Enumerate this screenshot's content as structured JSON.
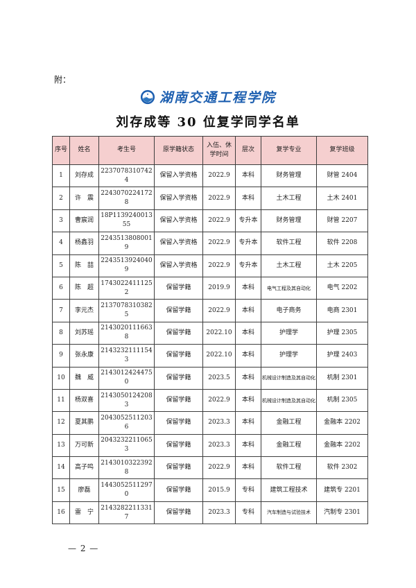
{
  "page": {
    "attachment_label": "附：",
    "page_number": "— 2 —"
  },
  "header": {
    "school_name": "湖南交通工程学院",
    "emblem_icon": "school-seal-icon",
    "title": "刘存成等 30 位复学同学名单"
  },
  "colors": {
    "header_bg": "#f5cfcf",
    "logo_blue": "#1d5fb0",
    "border": "#3c3c3c",
    "page_bg": "#ffffff"
  },
  "table": {
    "columns": [
      "序号",
      "姓名",
      "考生号",
      "原学籍状态",
      "入伍、休学时间",
      "层次",
      "复学专业",
      "复学班级"
    ],
    "rows": [
      [
        "1",
        "刘存成",
        "22370783107424",
        "保留入学资格",
        "2022.9",
        "本科",
        "财务管理",
        "财管 2404"
      ],
      [
        "2",
        "许　震",
        "22430702241728",
        "保留入学资格",
        "2022.9",
        "本科",
        "土木工程",
        "土木 2401"
      ],
      [
        "3",
        "曹宸润",
        "18P113924001355",
        "保留入学资格",
        "2022.9",
        "专升本",
        "财务管理",
        "财管 2207"
      ],
      [
        "4",
        "杨鑫羽",
        "22435138080019",
        "保留入学资格",
        "2022.9",
        "专升本",
        "软件工程",
        "软件 2208"
      ],
      [
        "5",
        "陈　喆",
        "22435139240409",
        "保留入学资格",
        "2022.9",
        "专升本",
        "土木工程",
        "土木 2205"
      ],
      [
        "6",
        "陈　超",
        "17430224111252",
        "保留学籍",
        "2019.9",
        "本科",
        "电气工程及其自动化",
        "电气 2202"
      ],
      [
        "7",
        "李元杰",
        "21370783103825",
        "保留学籍",
        "2022.9",
        "本科",
        "电子商务",
        "电商 2301"
      ],
      [
        "8",
        "刘苏瑶",
        "21430201116638",
        "保留学籍",
        "2022.10",
        "本科",
        "护理学",
        "护理 2305"
      ],
      [
        "9",
        "张永康",
        "21432321111543",
        "保留学籍",
        "2022.10",
        "本科",
        "护理学",
        "护理 2403"
      ],
      [
        "10",
        "魏　威",
        "21430124244750",
        "保留学籍",
        "2023.5",
        "本科",
        "机械设计制造及其自动化",
        "机制 2301"
      ],
      [
        "11",
        "杨双喜",
        "21430501242083",
        "保留学籍",
        "2022.9",
        "本科",
        "机械设计制造及其自动化",
        "机制 2305"
      ],
      [
        "12",
        "夏其鹏",
        "20430525112036",
        "保留学籍",
        "2023.3",
        "本科",
        "金融工程",
        "金融本 2202"
      ],
      [
        "13",
        "万可新",
        "20432322110653",
        "保留学籍",
        "2023.3",
        "本科",
        "金融工程",
        "金融本 2202"
      ],
      [
        "14",
        "高子鸣",
        "21430103223928",
        "保留学籍",
        "2022.9",
        "本科",
        "软件工程",
        "软件 2302"
      ],
      [
        "15",
        "廖磊",
        "14430525112970",
        "保留学籍",
        "2015.9",
        "专科",
        "建筑工程技术",
        "建筑专 2201"
      ],
      [
        "16",
        "雷　宁",
        "21432822113317",
        "保留学籍",
        "2023.3",
        "专科",
        "汽车制造与试验技术",
        "汽制专 2301"
      ]
    ]
  }
}
